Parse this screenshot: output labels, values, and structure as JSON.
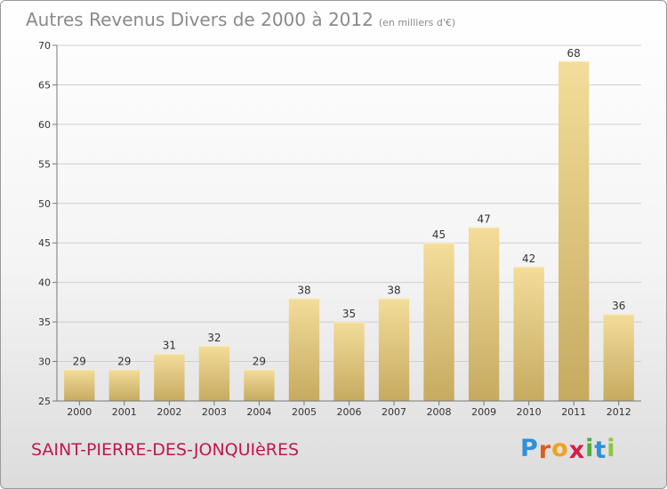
{
  "header": {
    "title": "Autres Revenus Divers de 2000 à 2012",
    "unit": "(en milliers d'€)"
  },
  "footer": {
    "commune": "SAINT-PIERRE-DES-JONQUIèRES",
    "brand_letters": [
      "P",
      "r",
      "o",
      "x",
      "i",
      "t",
      "i"
    ],
    "brand_colors": [
      "#2f8fd8",
      "#e05a1c",
      "#f2a11f",
      "#d21f4a",
      "#4fae3b",
      "#2f8fd8",
      "#8cc63f"
    ]
  },
  "colors": {
    "bar_light": "#f3dd9a",
    "bar_dark": "#c6aa60",
    "grid": "#cfcfcf"
  },
  "chart_data": {
    "type": "bar",
    "categories": [
      "2000",
      "2001",
      "2002",
      "2003",
      "2004",
      "2005",
      "2006",
      "2007",
      "2008",
      "2009",
      "2010",
      "2011",
      "2012"
    ],
    "values": [
      29,
      29,
      31,
      32,
      29,
      38,
      35,
      38,
      45,
      47,
      42,
      68,
      36
    ],
    "title": "Autres Revenus Divers de 2000 à 2012",
    "subtitle": "(en milliers d'€)",
    "xlabel": "",
    "ylabel": "",
    "ylim": [
      25,
      70
    ],
    "yticks": [
      25,
      30,
      35,
      40,
      45,
      50,
      55,
      60,
      65,
      70
    ],
    "grid": true
  }
}
